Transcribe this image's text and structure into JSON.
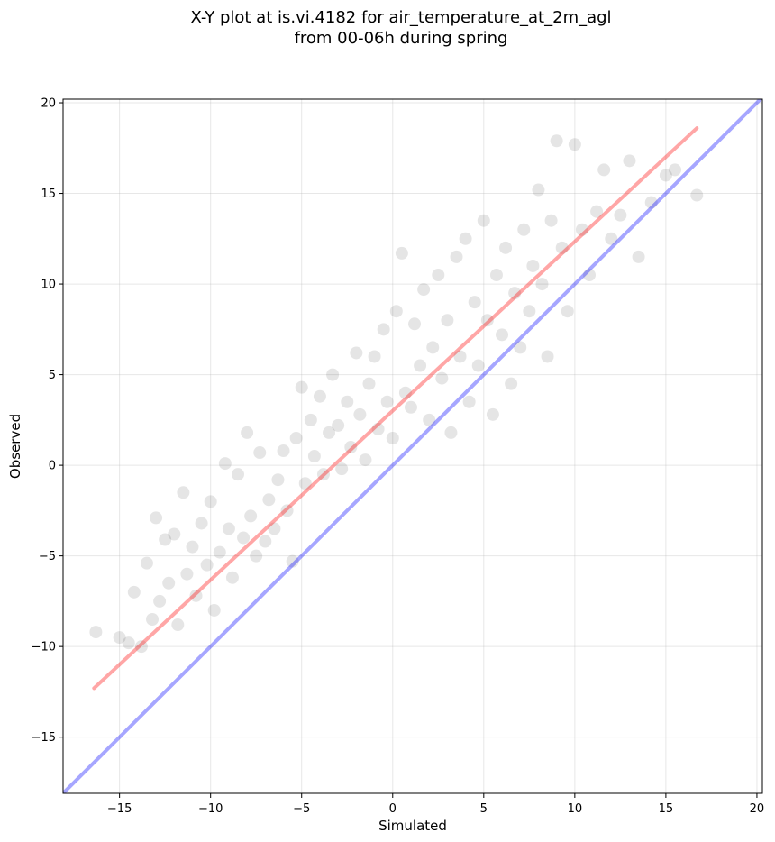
{
  "chart_data": {
    "type": "scatter",
    "title": "X-Y plot at is.vi.4182 for air_temperature_at_2m_agl",
    "subtitle": "from 00-06h during spring",
    "xlabel": "Simulated",
    "ylabel": "Observed",
    "xlim": [
      -18.1,
      20.3
    ],
    "ylim": [
      -18.1,
      20.2
    ],
    "xticks": [
      -15,
      -10,
      -5,
      0,
      5,
      10,
      15,
      20
    ],
    "yticks": [
      -15,
      -10,
      -5,
      0,
      5,
      10,
      15,
      20
    ],
    "xtick_labels": [
      "−15",
      "−10",
      "−5",
      "0",
      "5",
      "10",
      "15",
      "20"
    ],
    "ytick_labels": [
      "−15",
      "−10",
      "−5",
      "0",
      "5",
      "10",
      "15",
      "20"
    ],
    "grid": true,
    "legend": "none",
    "point_color": "#000000",
    "point_alpha": 0.1,
    "series": [
      {
        "kind": "points",
        "x": [
          -16.3,
          -15.0,
          -14.5,
          -14.2,
          -13.8,
          -13.5,
          -13.2,
          -13.0,
          -12.8,
          -12.5,
          -12.3,
          -12.0,
          -11.8,
          -11.5,
          -11.3,
          -11.0,
          -10.8,
          -10.5,
          -10.2,
          -10.0,
          -9.8,
          -9.5,
          -9.2,
          -9.0,
          -8.8,
          -8.5,
          -8.2,
          -8.0,
          -7.8,
          -7.5,
          -7.3,
          -7.0,
          -6.8,
          -6.5,
          -6.3,
          -6.0,
          -5.8,
          -5.5,
          -5.3,
          -5.0,
          -4.8,
          -4.5,
          -4.3,
          -4.0,
          -3.8,
          -3.5,
          -3.3,
          -3.0,
          -2.8,
          -2.5,
          -2.3,
          -2.0,
          -1.8,
          -1.5,
          -1.3,
          -1.0,
          -0.8,
          -0.5,
          -0.3,
          0.0,
          0.2,
          0.5,
          0.7,
          1.0,
          1.2,
          1.5,
          1.7,
          2.0,
          2.2,
          2.5,
          2.7,
          3.0,
          3.2,
          3.5,
          3.7,
          4.0,
          4.2,
          4.5,
          4.7,
          5.0,
          5.2,
          5.5,
          5.7,
          6.0,
          6.2,
          6.5,
          6.7,
          7.0,
          7.2,
          7.5,
          7.7,
          8.0,
          8.2,
          8.5,
          8.7,
          9.0,
          9.3,
          9.6,
          10.0,
          10.4,
          10.8,
          11.2,
          11.6,
          12.0,
          12.5,
          13.0,
          13.5,
          14.2,
          15.0,
          15.5,
          16.7
        ],
        "y": [
          -9.2,
          -9.5,
          -9.8,
          -7.0,
          -10.0,
          -5.4,
          -8.5,
          -2.9,
          -7.5,
          -4.1,
          -6.5,
          -3.8,
          -8.8,
          -1.5,
          -6.0,
          -4.5,
          -7.2,
          -3.2,
          -5.5,
          -2.0,
          -8.0,
          -4.8,
          0.1,
          -3.5,
          -6.2,
          -0.5,
          -4.0,
          1.8,
          -2.8,
          -5.0,
          0.7,
          -4.2,
          -1.9,
          -3.5,
          -0.8,
          0.8,
          -2.5,
          -5.3,
          1.5,
          4.3,
          -1.0,
          2.5,
          0.5,
          3.8,
          -0.5,
          1.8,
          5.0,
          2.2,
          -0.2,
          3.5,
          1.0,
          6.2,
          2.8,
          0.3,
          4.5,
          6.0,
          2.0,
          7.5,
          3.5,
          1.5,
          8.5,
          11.7,
          4.0,
          3.2,
          7.8,
          5.5,
          9.7,
          2.5,
          6.5,
          10.5,
          4.8,
          8.0,
          1.8,
          11.5,
          6.0,
          12.5,
          3.5,
          9.0,
          5.5,
          13.5,
          8.0,
          2.8,
          10.5,
          7.2,
          12.0,
          4.5,
          9.5,
          6.5,
          13.0,
          8.5,
          11.0,
          15.2,
          10.0,
          6.0,
          13.5,
          17.9,
          12.0,
          8.5,
          17.7,
          13.0,
          10.5,
          14.0,
          16.3,
          12.5,
          13.8,
          16.8,
          11.5,
          14.5,
          16.0,
          16.3,
          14.9
        ]
      },
      {
        "kind": "fit",
        "name": "",
        "color": "#ff0000",
        "alpha": 0.35,
        "x": [
          -16.4,
          16.7
        ],
        "y": [
          -12.3,
          18.6
        ]
      },
      {
        "kind": "identity",
        "name": "",
        "color": "#0000ff",
        "alpha": 0.35,
        "x": [
          -18.1,
          20.3
        ],
        "y": [
          -18.1,
          20.3
        ]
      }
    ]
  }
}
